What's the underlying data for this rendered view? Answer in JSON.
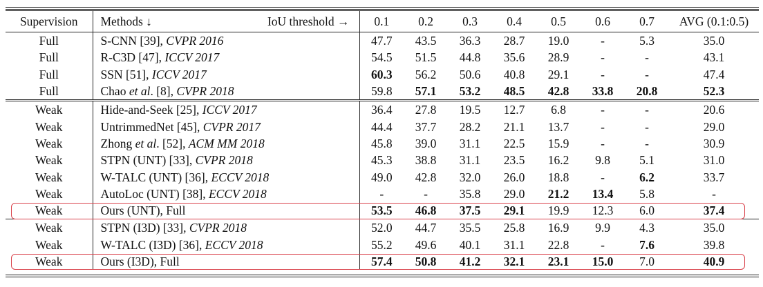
{
  "header": {
    "supervision": "Supervision",
    "methods": "Methods ↓",
    "iou": "IoU threshold →",
    "thresholds": [
      "0.1",
      "0.2",
      "0.3",
      "0.4",
      "0.5",
      "0.6",
      "0.7"
    ],
    "avg": "AVG (0.1:0.5)"
  },
  "groups": [
    {
      "rows": [
        {
          "sup": "Full",
          "method": [
            {
              "t": "S-CNN [39], "
            },
            {
              "t": "CVPR 2016",
              "i": true
            }
          ],
          "vals": [
            "47.7",
            "43.5",
            "36.3",
            "28.7",
            "19.0",
            "-",
            "5.3"
          ],
          "avg": "35.0",
          "bold": []
        },
        {
          "sup": "Full",
          "method": [
            {
              "t": "R-C3D [47], "
            },
            {
              "t": "ICCV 2017",
              "i": true
            }
          ],
          "vals": [
            "54.5",
            "51.5",
            "44.8",
            "35.6",
            "28.9",
            "-",
            "-"
          ],
          "avg": "43.1",
          "bold": []
        },
        {
          "sup": "Full",
          "method": [
            {
              "t": "SSN [51], "
            },
            {
              "t": "ICCV 2017",
              "i": true
            }
          ],
          "vals": [
            "60.3",
            "56.2",
            "50.6",
            "40.8",
            "29.1",
            "-",
            "-"
          ],
          "avg": "47.4",
          "bold": [
            0
          ]
        },
        {
          "sup": "Full",
          "method": [
            {
              "t": "Chao "
            },
            {
              "t": "et al",
              "i": true
            },
            {
              "t": ". [8], "
            },
            {
              "t": "CVPR 2018",
              "i": true
            }
          ],
          "vals": [
            "59.8",
            "57.1",
            "53.2",
            "48.5",
            "42.8",
            "33.8",
            "20.8"
          ],
          "avg": "52.3",
          "bold": [
            1,
            2,
            3,
            4,
            5,
            6,
            7
          ]
        }
      ]
    },
    {
      "rows": [
        {
          "sup": "Weak",
          "method": [
            {
              "t": "Hide-and-Seek [25], "
            },
            {
              "t": "ICCV 2017",
              "i": true
            }
          ],
          "vals": [
            "36.4",
            "27.8",
            "19.5",
            "12.7",
            "6.8",
            "-",
            "-"
          ],
          "avg": "20.6",
          "bold": []
        },
        {
          "sup": "Weak",
          "method": [
            {
              "t": "UntrimmedNet [45], "
            },
            {
              "t": "CVPR 2017",
              "i": true
            }
          ],
          "vals": [
            "44.4",
            "37.7",
            "28.2",
            "21.1",
            "13.7",
            "-",
            "-"
          ],
          "avg": "29.0",
          "bold": []
        },
        {
          "sup": "Weak",
          "method": [
            {
              "t": "Zhong "
            },
            {
              "t": "et al",
              "i": true
            },
            {
              "t": ". [52], "
            },
            {
              "t": "ACM MM 2018",
              "i": true
            }
          ],
          "vals": [
            "45.8",
            "39.0",
            "31.1",
            "22.5",
            "15.9",
            "-",
            "-"
          ],
          "avg": "30.9",
          "bold": []
        },
        {
          "sup": "Weak",
          "method": [
            {
              "t": "STPN (UNT) [33], "
            },
            {
              "t": "CVPR 2018",
              "i": true
            }
          ],
          "vals": [
            "45.3",
            "38.8",
            "31.1",
            "23.5",
            "16.2",
            "9.8",
            "5.1"
          ],
          "avg": "31.0",
          "bold": []
        },
        {
          "sup": "Weak",
          "method": [
            {
              "t": "W-TALC (UNT) [36], "
            },
            {
              "t": "ECCV 2018",
              "i": true
            }
          ],
          "vals": [
            "49.0",
            "42.8",
            "32.0",
            "26.0",
            "18.8",
            "-",
            "6.2"
          ],
          "avg": "33.7",
          "bold": [
            6
          ]
        },
        {
          "sup": "Weak",
          "method": [
            {
              "t": "AutoLoc (UNT) [38], "
            },
            {
              "t": "ECCV 2018",
              "i": true
            }
          ],
          "vals": [
            "-",
            "-",
            "35.8",
            "29.0",
            "21.2",
            "13.4",
            "5.8"
          ],
          "avg": "-",
          "bold": [
            4,
            5
          ]
        },
        {
          "sup": "Weak",
          "method": [
            {
              "t": "Ours (UNT), Full"
            }
          ],
          "vals": [
            "53.5",
            "46.8",
            "37.5",
            "29.1",
            "19.9",
            "12.3",
            "6.0"
          ],
          "avg": "37.4",
          "bold": [
            0,
            1,
            2,
            3,
            7
          ],
          "highlight": true
        }
      ]
    },
    {
      "rows": [
        {
          "sup": "Weak",
          "method": [
            {
              "t": "STPN (I3D) [33], "
            },
            {
              "t": "CVPR 2018",
              "i": true
            }
          ],
          "vals": [
            "52.0",
            "44.7",
            "35.5",
            "25.8",
            "16.9",
            "9.9",
            "4.3"
          ],
          "avg": "35.0",
          "bold": []
        },
        {
          "sup": "Weak",
          "method": [
            {
              "t": "W-TALC (I3D) [36], "
            },
            {
              "t": "ECCV 2018",
              "i": true
            }
          ],
          "vals": [
            "55.2",
            "49.6",
            "40.1",
            "31.1",
            "22.8",
            "-",
            "7.6"
          ],
          "avg": "39.8",
          "bold": [
            6
          ]
        },
        {
          "sup": "Weak",
          "method": [
            {
              "t": "Ours (I3D), Full"
            }
          ],
          "vals": [
            "57.4",
            "50.8",
            "41.2",
            "32.1",
            "23.1",
            "15.0",
            "7.0"
          ],
          "avg": "40.9",
          "bold": [
            0,
            1,
            2,
            3,
            4,
            5,
            7
          ],
          "highlight": true
        }
      ]
    }
  ],
  "colors": {
    "highlight": "#d9414a",
    "rule": "#222222",
    "text": "#111111"
  }
}
